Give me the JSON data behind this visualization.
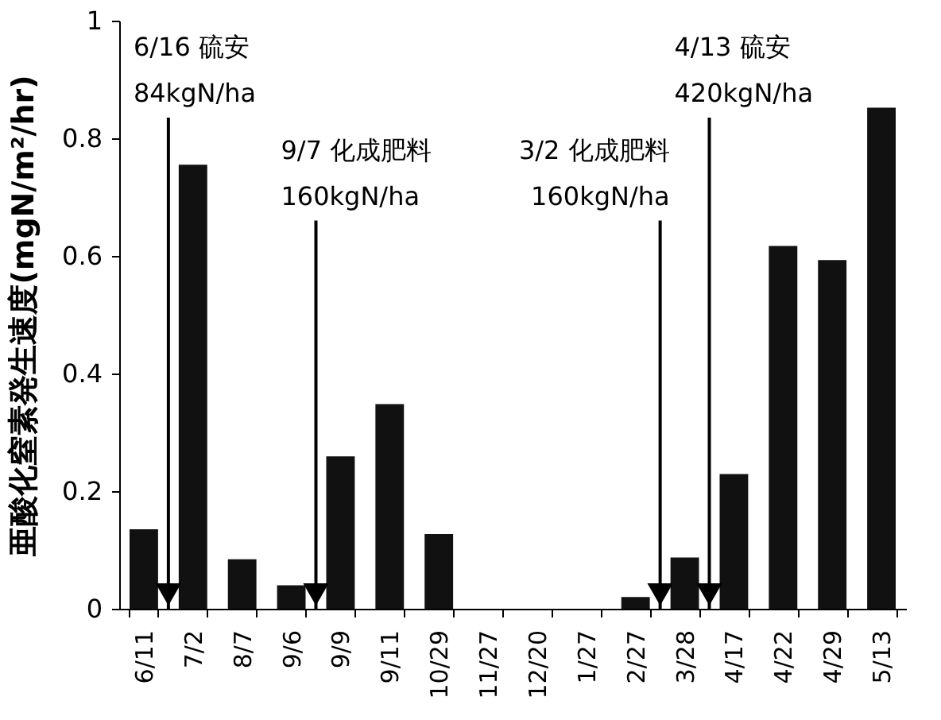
{
  "chart_data": {
    "type": "bar",
    "ylabel": "亜酸化窒素発生速度(mgN/m²/hr)",
    "categories": [
      "6/11",
      "7/2",
      "8/7",
      "9/6",
      "9/9",
      "9/11",
      "10/29",
      "11/27",
      "12/20",
      "1/27",
      "2/27",
      "3/28",
      "4/17",
      "4/22",
      "4/29",
      "5/13"
    ],
    "values": [
      0.135,
      0.755,
      0.084,
      0.04,
      0.259,
      0.348,
      0.127,
      0,
      0,
      0,
      0.02,
      0.087,
      0.229,
      0.617,
      0.593,
      0.852
    ],
    "color": "#111111",
    "ylim": [
      0,
      1
    ],
    "yticks": [
      0,
      0.2,
      0.4,
      0.6,
      0.8,
      1
    ],
    "grid": false,
    "annotations": [
      "6/16 硫安\n84kgN/ha",
      "9/7 化成肥料\n160kgN/ha",
      "3/2 化成肥料\n160kgN/ha",
      "4/13 硫安\n420kgN/ha"
    ]
  }
}
